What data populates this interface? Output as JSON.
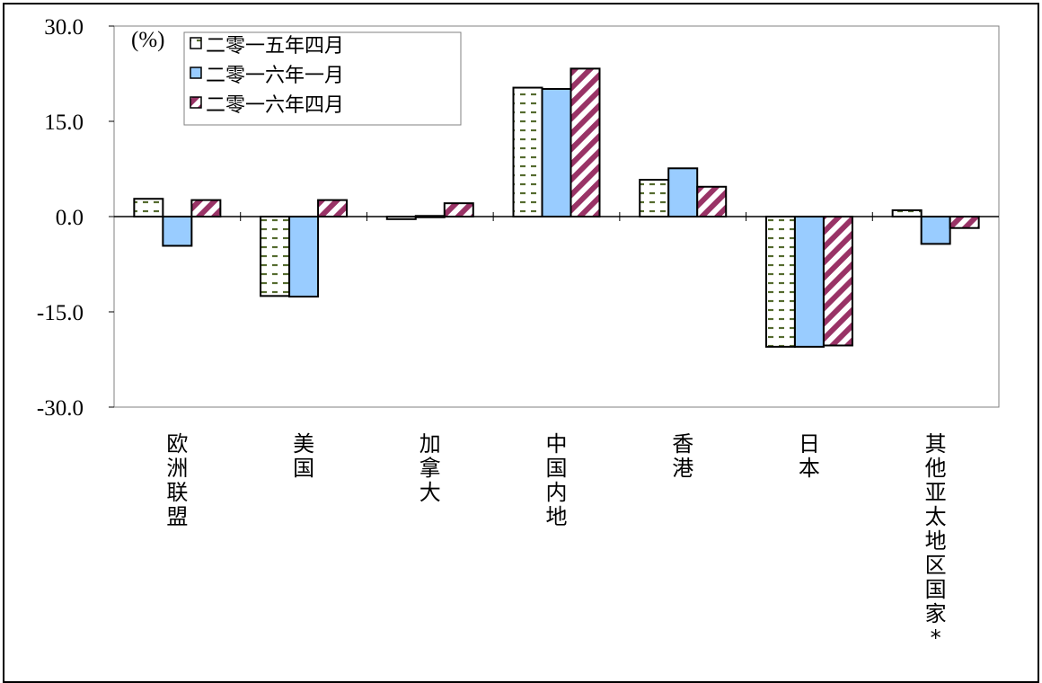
{
  "chart_data": {
    "type": "bar",
    "unit_label": "(%)",
    "categories": [
      "欧洲联盟",
      "美国",
      "加拿大",
      "中国内地",
      "香港",
      "日本",
      "其他亚太地区国家*"
    ],
    "series": [
      {
        "name": "二零一五年四月",
        "pattern": "dots",
        "values": [
          2.8,
          -12.5,
          -0.4,
          20.3,
          5.8,
          -20.5,
          1.0
        ]
      },
      {
        "name": "二零一六年一月",
        "pattern": "solid",
        "values": [
          -4.6,
          -12.6,
          0.0,
          20.1,
          7.6,
          -20.5,
          -4.3
        ]
      },
      {
        "name": "二零一六年四月",
        "pattern": "stripes",
        "values": [
          2.6,
          2.6,
          2.1,
          23.3,
          4.7,
          -20.3,
          -1.8
        ]
      }
    ],
    "yticks": [
      "30.0",
      "15.0",
      "0.0",
      "-15.0",
      "-30.0"
    ],
    "ylim": [
      -30,
      30
    ],
    "legend_position": "top-left",
    "grid": false,
    "colors": {
      "series_solid": "#99ccff",
      "dots": "#556b2f",
      "stripes": "#993366",
      "stroke": "#000000"
    }
  }
}
